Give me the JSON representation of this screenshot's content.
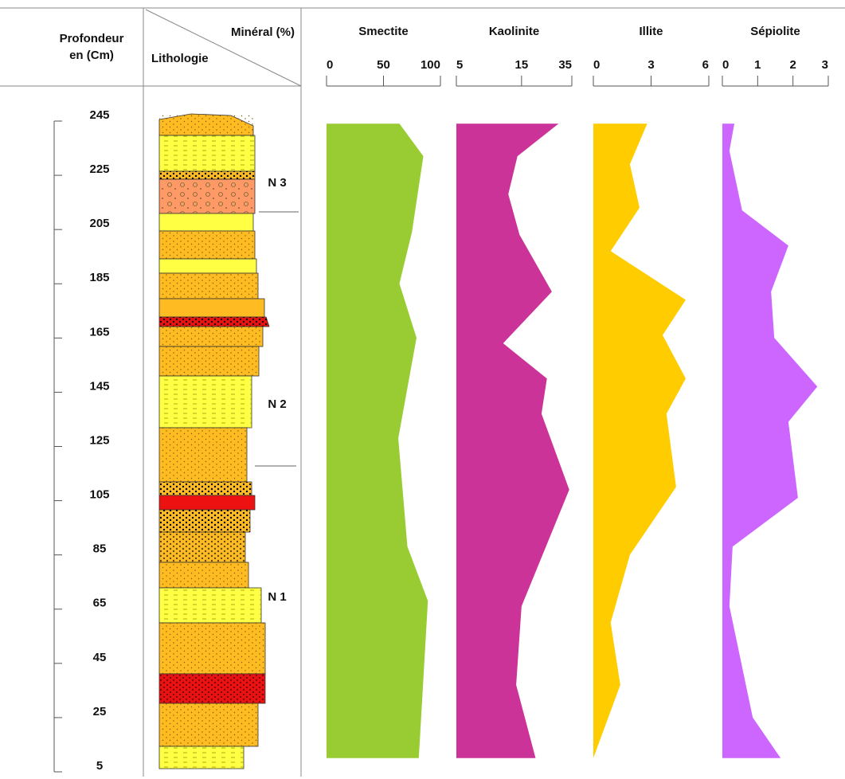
{
  "chart_data": {
    "type": "depth-profile",
    "depth_label": [
      "Profondeur",
      "en (Cm)"
    ],
    "mineral_label": "Minéral (%)",
    "lithology_label": "Lithologie",
    "ylim": [
      245,
      5
    ],
    "yticks": [
      245,
      225,
      205,
      185,
      165,
      145,
      125,
      105,
      85,
      65,
      45,
      25,
      5
    ],
    "levels": [
      "N 3",
      "N 2",
      "N 1"
    ],
    "series": [
      {
        "name": "Smectite",
        "color": "#99cc33",
        "log": false,
        "xlim": [
          0,
          100
        ],
        "xticks": [
          0,
          50,
          100
        ],
        "depth": [
          242,
          230,
          202,
          183,
          163,
          126,
          86,
          66,
          8
        ],
        "values": [
          64,
          85,
          75,
          64,
          79,
          63,
          71,
          89,
          81
        ]
      },
      {
        "name": "Kaolinite",
        "color": "#cc3399",
        "log": true,
        "xlim": [
          5,
          35
        ],
        "xticks": [
          5,
          15,
          35
        ],
        "depth": [
          242,
          230,
          216,
          201,
          180,
          161,
          148,
          135,
          107,
          64,
          35,
          8
        ],
        "values": [
          28,
          14,
          12,
          14.5,
          25,
          11,
          23,
          21,
          33.5,
          15,
          13.7,
          19
        ]
      },
      {
        "name": "Illite",
        "color": "#ffcc00",
        "log": false,
        "xlim": [
          0,
          6
        ],
        "xticks": [
          0,
          3,
          6
        ],
        "depth": [
          242,
          227,
          211,
          195,
          177,
          164,
          148,
          135,
          108,
          83,
          58,
          35,
          8
        ],
        "values": [
          2.8,
          1.9,
          2.4,
          0.9,
          4.8,
          3.6,
          4.8,
          3.8,
          4.3,
          1.9,
          0.9,
          1.4,
          0
        ]
      },
      {
        "name": "Sépiolite",
        "color": "#cc66ff",
        "log": false,
        "xlim": [
          0,
          3
        ],
        "xticks": [
          0,
          1,
          2,
          3
        ],
        "depth": [
          242,
          232,
          210,
          197,
          180,
          163,
          145,
          132,
          104,
          86,
          64,
          23,
          8
        ],
        "values": [
          0.34,
          0.2,
          0.56,
          1.87,
          1.38,
          1.47,
          2.69,
          1.87,
          2.14,
          0.29,
          0.2,
          0.86,
          1.65
        ]
      }
    ]
  }
}
